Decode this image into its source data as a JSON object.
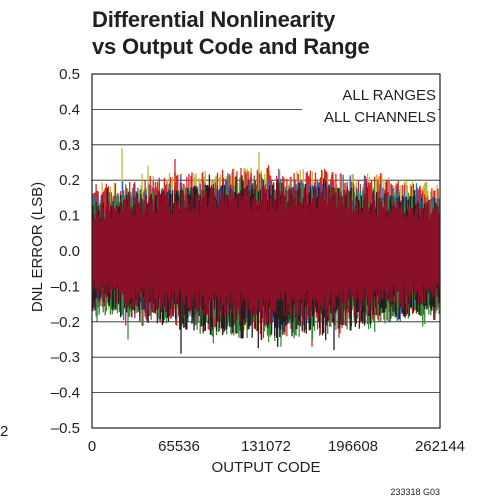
{
  "chart_data": {
    "type": "line",
    "title_line1": "Differential Nonlinearity",
    "title_line2": "vs Output Code and Range",
    "xlabel": "OUTPUT CODE",
    "ylabel": "DNL ERROR (LSB)",
    "xlim": [
      0,
      262144
    ],
    "ylim": [
      -0.5,
      0.5
    ],
    "x_ticks": [
      0,
      65536,
      131072,
      196608,
      262144
    ],
    "x_tick_labels": [
      "0",
      "65536",
      "131072",
      "196608",
      "262144"
    ],
    "y_ticks": [
      -0.5,
      -0.4,
      -0.3,
      -0.2,
      -0.1,
      0.0,
      0.1,
      0.2,
      0.3,
      0.4,
      0.5
    ],
    "y_tick_labels": [
      "–0.5",
      "–0.4",
      "–0.3",
      "–0.2",
      "–0.1",
      "0.0",
      "0.1",
      "0.2",
      "0.3",
      "0.4",
      "0.5"
    ],
    "grid": true,
    "annotations": [
      "ALL RANGES",
      "ALL CHANNELS"
    ],
    "stray_label": "2",
    "figure_code": "233318 G03",
    "series": [
      {
        "color": "#c8b43c",
        "upper": [
          0.19,
          0.22,
          0.23,
          0.24,
          0.23,
          0.22,
          0.19
        ],
        "lower": [
          -0.16,
          -0.18,
          -0.2,
          -0.21,
          -0.2,
          -0.18,
          -0.16
        ],
        "peaks": [
          0.29,
          0.28
        ]
      },
      {
        "color": "#d9252a",
        "upper": [
          0.18,
          0.21,
          0.23,
          0.24,
          0.23,
          0.21,
          0.18
        ],
        "lower": [
          -0.17,
          -0.2,
          -0.23,
          -0.25,
          -0.23,
          -0.2,
          -0.17
        ],
        "peaks": [
          0.26,
          -0.27
        ]
      },
      {
        "color": "#3b5fb0",
        "upper": [
          0.16,
          0.19,
          0.2,
          0.21,
          0.2,
          0.19,
          0.16
        ],
        "lower": [
          -0.16,
          -0.19,
          -0.21,
          -0.22,
          -0.21,
          -0.19,
          -0.16
        ],
        "peaks": [
          0.22,
          0.21
        ]
      },
      {
        "color": "#3a8b3c",
        "upper": [
          0.15,
          0.18,
          0.19,
          0.2,
          0.19,
          0.18,
          0.15
        ],
        "lower": [
          -0.18,
          -0.21,
          -0.24,
          -0.26,
          -0.24,
          -0.21,
          -0.18
        ],
        "peaks": [
          -0.27,
          -0.25
        ]
      },
      {
        "color": "#231f20",
        "upper": [
          0.15,
          0.17,
          0.19,
          0.2,
          0.19,
          0.17,
          0.15
        ],
        "lower": [
          -0.17,
          -0.21,
          -0.24,
          -0.26,
          -0.24,
          -0.21,
          -0.17
        ],
        "peaks": [
          -0.28,
          -0.29
        ]
      },
      {
        "color": "#8a1028",
        "upper": [
          0.14,
          0.17,
          0.19,
          0.2,
          0.19,
          0.17,
          0.14
        ],
        "lower": [
          -0.15,
          -0.18,
          -0.2,
          -0.21,
          -0.2,
          -0.18,
          -0.15
        ],
        "peaks": [
          0.2,
          -0.21
        ]
      }
    ]
  }
}
